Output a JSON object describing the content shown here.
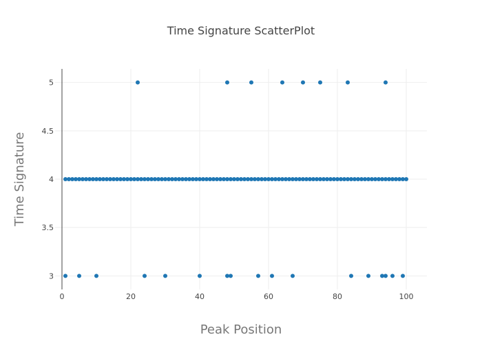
{
  "chart_data": {
    "type": "scatter",
    "title": "Time Signature ScatterPlot",
    "xlabel": "Peak Position",
    "ylabel": "Time Signature",
    "xlim": [
      -2,
      106
    ],
    "ylim": [
      2.86,
      5.14
    ],
    "xticks": [
      0,
      20,
      40,
      60,
      80,
      100
    ],
    "yticks": [
      3,
      3.5,
      4,
      4.5,
      5
    ],
    "xtick_labels": [
      "0",
      "20",
      "40",
      "60",
      "80",
      "100"
    ],
    "ytick_labels": [
      "3",
      "3.5",
      "4",
      "4.5",
      "5"
    ],
    "grid": true,
    "marker_color": "#1f77b4",
    "series": [
      {
        "points": [
          {
            "x": 1,
            "y": 4
          },
          {
            "x": 2,
            "y": 4
          },
          {
            "x": 3,
            "y": 4
          },
          {
            "x": 4,
            "y": 4
          },
          {
            "x": 5,
            "y": 4
          },
          {
            "x": 6,
            "y": 4
          },
          {
            "x": 7,
            "y": 4
          },
          {
            "x": 8,
            "y": 4
          },
          {
            "x": 9,
            "y": 4
          },
          {
            "x": 10,
            "y": 4
          },
          {
            "x": 11,
            "y": 4
          },
          {
            "x": 12,
            "y": 4
          },
          {
            "x": 13,
            "y": 4
          },
          {
            "x": 14,
            "y": 4
          },
          {
            "x": 15,
            "y": 4
          },
          {
            "x": 16,
            "y": 4
          },
          {
            "x": 17,
            "y": 4
          },
          {
            "x": 18,
            "y": 4
          },
          {
            "x": 19,
            "y": 4
          },
          {
            "x": 20,
            "y": 4
          },
          {
            "x": 21,
            "y": 4
          },
          {
            "x": 22,
            "y": 4
          },
          {
            "x": 23,
            "y": 4
          },
          {
            "x": 24,
            "y": 4
          },
          {
            "x": 25,
            "y": 4
          },
          {
            "x": 26,
            "y": 4
          },
          {
            "x": 27,
            "y": 4
          },
          {
            "x": 28,
            "y": 4
          },
          {
            "x": 29,
            "y": 4
          },
          {
            "x": 30,
            "y": 4
          },
          {
            "x": 31,
            "y": 4
          },
          {
            "x": 32,
            "y": 4
          },
          {
            "x": 33,
            "y": 4
          },
          {
            "x": 34,
            "y": 4
          },
          {
            "x": 35,
            "y": 4
          },
          {
            "x": 36,
            "y": 4
          },
          {
            "x": 37,
            "y": 4
          },
          {
            "x": 38,
            "y": 4
          },
          {
            "x": 39,
            "y": 4
          },
          {
            "x": 40,
            "y": 4
          },
          {
            "x": 41,
            "y": 4
          },
          {
            "x": 42,
            "y": 4
          },
          {
            "x": 43,
            "y": 4
          },
          {
            "x": 44,
            "y": 4
          },
          {
            "x": 45,
            "y": 4
          },
          {
            "x": 46,
            "y": 4
          },
          {
            "x": 47,
            "y": 4
          },
          {
            "x": 48,
            "y": 4
          },
          {
            "x": 49,
            "y": 4
          },
          {
            "x": 50,
            "y": 4
          },
          {
            "x": 51,
            "y": 4
          },
          {
            "x": 52,
            "y": 4
          },
          {
            "x": 53,
            "y": 4
          },
          {
            "x": 54,
            "y": 4
          },
          {
            "x": 55,
            "y": 4
          },
          {
            "x": 56,
            "y": 4
          },
          {
            "x": 57,
            "y": 4
          },
          {
            "x": 58,
            "y": 4
          },
          {
            "x": 59,
            "y": 4
          },
          {
            "x": 60,
            "y": 4
          },
          {
            "x": 61,
            "y": 4
          },
          {
            "x": 62,
            "y": 4
          },
          {
            "x": 63,
            "y": 4
          },
          {
            "x": 64,
            "y": 4
          },
          {
            "x": 65,
            "y": 4
          },
          {
            "x": 66,
            "y": 4
          },
          {
            "x": 67,
            "y": 4
          },
          {
            "x": 68,
            "y": 4
          },
          {
            "x": 69,
            "y": 4
          },
          {
            "x": 70,
            "y": 4
          },
          {
            "x": 71,
            "y": 4
          },
          {
            "x": 72,
            "y": 4
          },
          {
            "x": 73,
            "y": 4
          },
          {
            "x": 74,
            "y": 4
          },
          {
            "x": 75,
            "y": 4
          },
          {
            "x": 76,
            "y": 4
          },
          {
            "x": 77,
            "y": 4
          },
          {
            "x": 78,
            "y": 4
          },
          {
            "x": 79,
            "y": 4
          },
          {
            "x": 80,
            "y": 4
          },
          {
            "x": 81,
            "y": 4
          },
          {
            "x": 82,
            "y": 4
          },
          {
            "x": 83,
            "y": 4
          },
          {
            "x": 84,
            "y": 4
          },
          {
            "x": 85,
            "y": 4
          },
          {
            "x": 86,
            "y": 4
          },
          {
            "x": 87,
            "y": 4
          },
          {
            "x": 88,
            "y": 4
          },
          {
            "x": 89,
            "y": 4
          },
          {
            "x": 90,
            "y": 4
          },
          {
            "x": 91,
            "y": 4
          },
          {
            "x": 92,
            "y": 4
          },
          {
            "x": 93,
            "y": 4
          },
          {
            "x": 94,
            "y": 4
          },
          {
            "x": 95,
            "y": 4
          },
          {
            "x": 96,
            "y": 4
          },
          {
            "x": 97,
            "y": 4
          },
          {
            "x": 98,
            "y": 4
          },
          {
            "x": 99,
            "y": 4
          },
          {
            "x": 100,
            "y": 4
          },
          {
            "x": 22,
            "y": 5
          },
          {
            "x": 48,
            "y": 5
          },
          {
            "x": 55,
            "y": 5
          },
          {
            "x": 64,
            "y": 5
          },
          {
            "x": 70,
            "y": 5
          },
          {
            "x": 75,
            "y": 5
          },
          {
            "x": 83,
            "y": 5
          },
          {
            "x": 94,
            "y": 5
          },
          {
            "x": 1,
            "y": 3
          },
          {
            "x": 5,
            "y": 3
          },
          {
            "x": 10,
            "y": 3
          },
          {
            "x": 24,
            "y": 3
          },
          {
            "x": 30,
            "y": 3
          },
          {
            "x": 40,
            "y": 3
          },
          {
            "x": 48,
            "y": 3
          },
          {
            "x": 49,
            "y": 3
          },
          {
            "x": 57,
            "y": 3
          },
          {
            "x": 61,
            "y": 3
          },
          {
            "x": 67,
            "y": 3
          },
          {
            "x": 84,
            "y": 3
          },
          {
            "x": 89,
            "y": 3
          },
          {
            "x": 93,
            "y": 3
          },
          {
            "x": 94,
            "y": 3
          },
          {
            "x": 96,
            "y": 3
          },
          {
            "x": 99,
            "y": 3
          }
        ]
      }
    ]
  }
}
